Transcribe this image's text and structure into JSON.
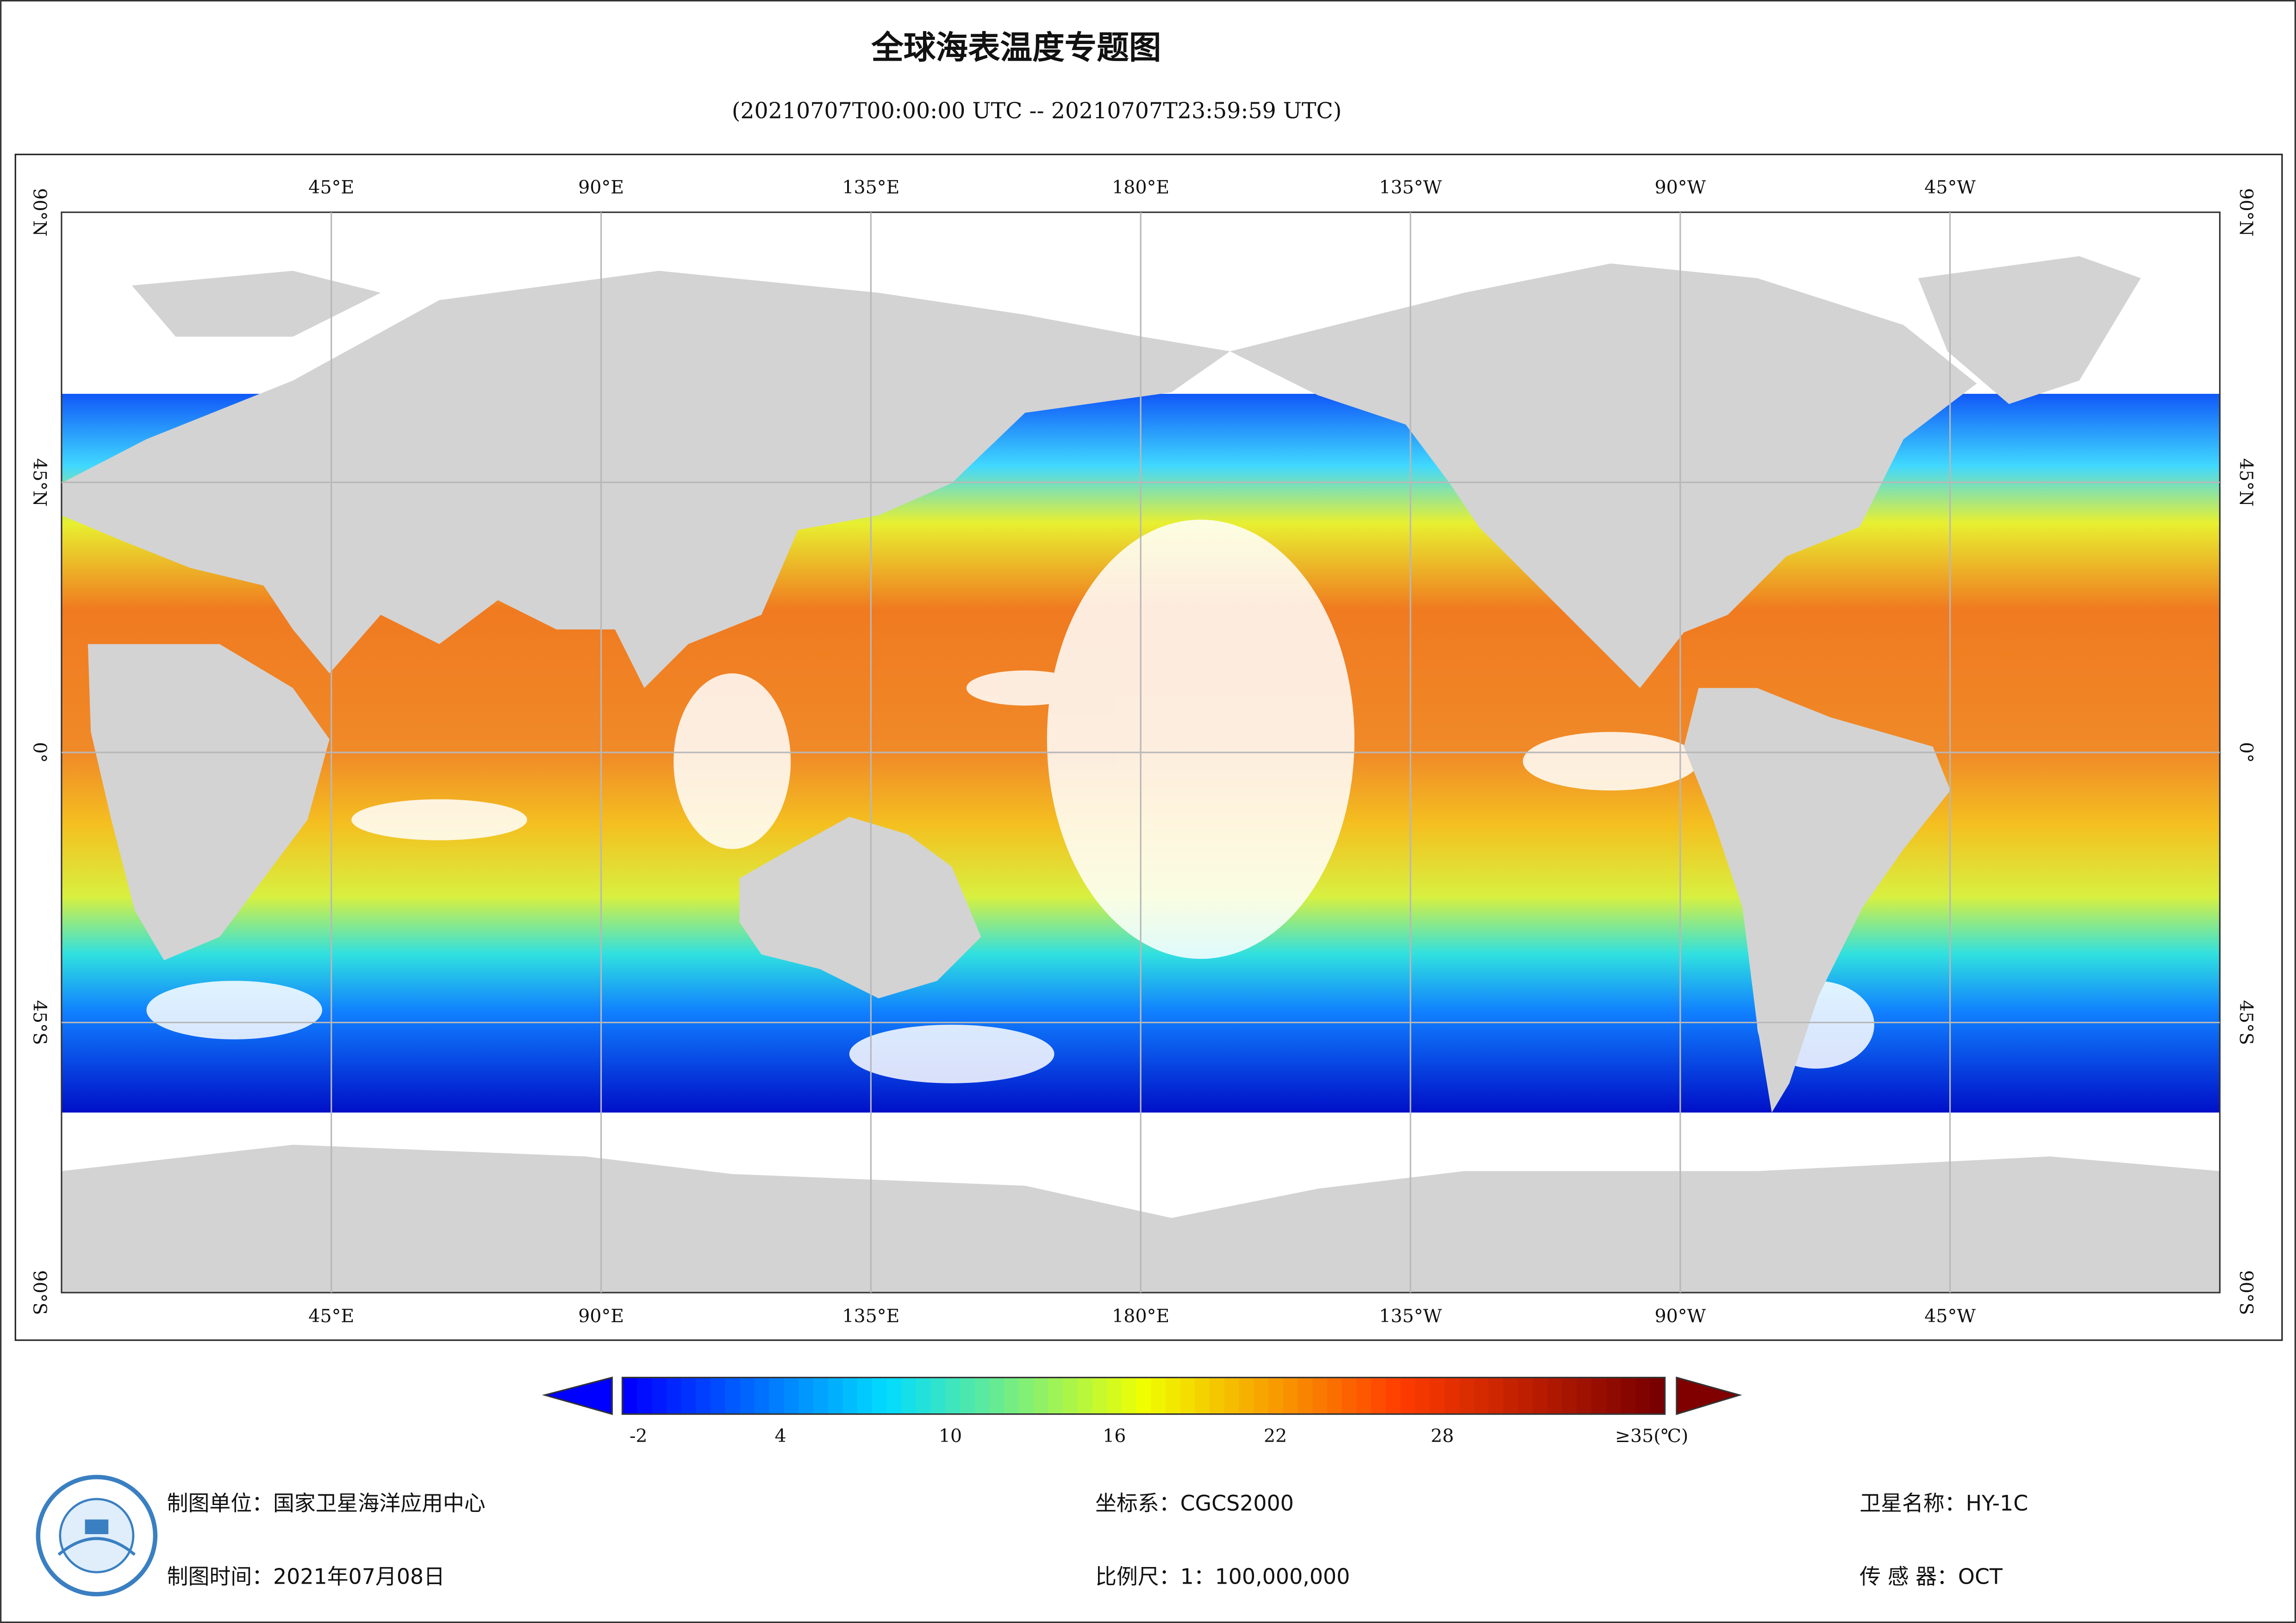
{
  "header": {
    "title": "全球海表温度专题图",
    "subtitle": "(20210707T00:00:00 UTC -- 20210707T23:59:59 UTC)"
  },
  "map": {
    "lon_labels": [
      "45°E",
      "90°E",
      "135°E",
      "180°E",
      "135°W",
      "90°W",
      "45°W"
    ],
    "lat_labels": [
      "90°N",
      "45°N",
      "0°",
      "45°S",
      "90°S"
    ]
  },
  "colorbar": {
    "labels": [
      "-2",
      "4",
      "10",
      "16",
      "22",
      "28",
      "≥35(℃)"
    ]
  },
  "footer": {
    "unit": "制图单位：国家卫星海洋应用中心",
    "date": "制图时间：2021年07月08日",
    "crs": "坐标系：CGCS2000",
    "scale": "比例尺：1：100,000,000",
    "satellite": "卫星名称：HY-1C",
    "sensor": "传 感 器：OCT"
  }
}
